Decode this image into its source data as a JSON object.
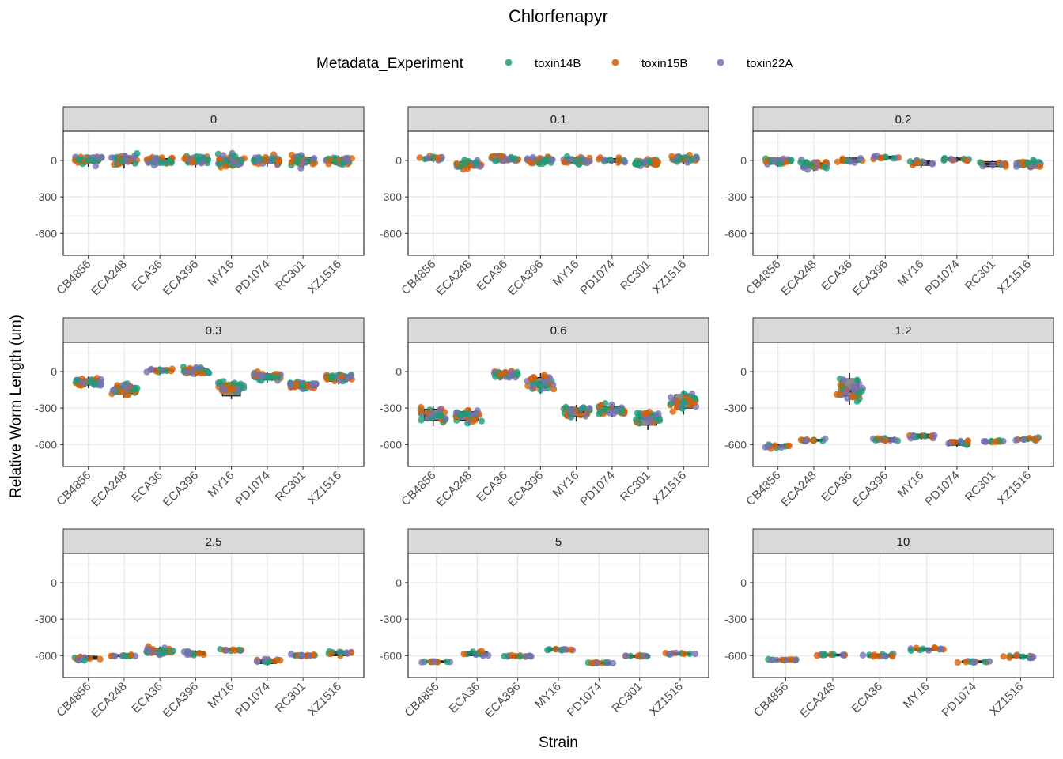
{
  "chart_data": {
    "type": "scatter",
    "title": "Chlorfenapyr",
    "xlabel": "Strain",
    "ylabel": "Relative Worm Length (um)",
    "ylim": [
      -780,
      240
    ],
    "y_ticks": [
      0,
      -300,
      -600
    ],
    "grid": true,
    "legend": {
      "title": "Metadata_Experiment",
      "position": "top",
      "entries": [
        {
          "name": "toxin14B",
          "color": "#1b9e77"
        },
        {
          "name": "toxin15B",
          "color": "#d95f02"
        },
        {
          "name": "toxin22A",
          "color": "#7570b3"
        }
      ]
    },
    "panels": [
      {
        "label": "0",
        "strains": [
          "CB4856",
          "ECA248",
          "ECA36",
          "ECA396",
          "MY16",
          "PD1074",
          "RC301",
          "XZ1516"
        ],
        "medians": [
          5,
          0,
          0,
          0,
          0,
          0,
          0,
          0
        ],
        "q1": [
          -20,
          -25,
          -15,
          -25,
          -20,
          -20,
          -25,
          -20
        ],
        "q3": [
          25,
          25,
          15,
          25,
          20,
          20,
          25,
          20
        ],
        "spread": [
          35,
          45,
          30,
          35,
          45,
          35,
          40,
          30
        ]
      },
      {
        "label": "0.1",
        "strains": [
          "CB4856",
          "ECA248",
          "ECA36",
          "ECA396",
          "MY16",
          "PD1074",
          "RC301",
          "XZ1516"
        ],
        "medians": [
          15,
          -30,
          15,
          0,
          0,
          0,
          -20,
          10
        ],
        "q1": [
          0,
          -45,
          0,
          -15,
          -20,
          -15,
          -35,
          -10
        ],
        "q3": [
          30,
          -10,
          30,
          15,
          20,
          15,
          -5,
          25
        ],
        "spread": [
          20,
          30,
          25,
          25,
          25,
          20,
          25,
          25
        ]
      },
      {
        "label": "0.2",
        "strains": [
          "CB4856",
          "ECA248",
          "ECA36",
          "ECA396",
          "MY16",
          "PD1074",
          "RC301",
          "XZ1516"
        ],
        "medians": [
          -10,
          -40,
          0,
          25,
          -20,
          10,
          -30,
          -30
        ],
        "q1": [
          -30,
          -60,
          -15,
          15,
          -40,
          0,
          -50,
          -50
        ],
        "q3": [
          10,
          -20,
          20,
          35,
          -5,
          20,
          -10,
          -10
        ],
        "spread": [
          25,
          30,
          20,
          15,
          20,
          15,
          20,
          25
        ]
      },
      {
        "label": "0.3",
        "strains": [
          "CB4856",
          "ECA248",
          "ECA36",
          "ECA396",
          "MY16",
          "PD1074",
          "RC301",
          "XZ1516"
        ],
        "medians": [
          -90,
          -150,
          10,
          10,
          -130,
          -40,
          -110,
          -50
        ],
        "q1": [
          -110,
          -180,
          -5,
          -20,
          -200,
          -70,
          -130,
          -80
        ],
        "q3": [
          -60,
          -120,
          30,
          30,
          -100,
          -20,
          -90,
          -30
        ],
        "spread": [
          30,
          40,
          20,
          25,
          30,
          25,
          25,
          30
        ]
      },
      {
        "label": "0.6",
        "strains": [
          "CB4856",
          "ECA248",
          "ECA36",
          "ECA396",
          "MY16",
          "PD1074",
          "RC301",
          "XZ1516"
        ],
        "medians": [
          -360,
          -370,
          -20,
          -90,
          -330,
          -310,
          -380,
          -250
        ],
        "q1": [
          -400,
          -400,
          -40,
          -130,
          -370,
          -340,
          -440,
          -300
        ],
        "q3": [
          -310,
          -330,
          -5,
          -50,
          -300,
          -290,
          -350,
          -190
        ],
        "spread": [
          55,
          50,
          30,
          60,
          45,
          40,
          45,
          60
        ]
      },
      {
        "label": "1.2",
        "strains": [
          "CB4856",
          "ECA248",
          "ECA36",
          "ECA396",
          "MY16",
          "PD1074",
          "RC301",
          "XZ1516"
        ],
        "medians": [
          -615,
          -565,
          -160,
          -560,
          -530,
          -585,
          -575,
          -555
        ],
        "q1": [
          -625,
          -570,
          -200,
          -575,
          -545,
          -605,
          -585,
          -565
        ],
        "q3": [
          -600,
          -560,
          -60,
          -545,
          -515,
          -570,
          -570,
          -545
        ],
        "spread": [
          12,
          10,
          80,
          18,
          15,
          18,
          10,
          12
        ]
      },
      {
        "label": "2.5",
        "strains": [
          "CB4856",
          "ECA248",
          "ECA36",
          "ECA396",
          "MY16",
          "PD1074",
          "RC301",
          "XZ1516"
        ],
        "medians": [
          -620,
          -600,
          -565,
          -580,
          -550,
          -650,
          -595,
          -580
        ],
        "q1": [
          -630,
          -605,
          -590,
          -595,
          -560,
          -665,
          -610,
          -600
        ],
        "q3": [
          -605,
          -595,
          -540,
          -565,
          -540,
          -635,
          -585,
          -570
        ],
        "spread": [
          15,
          6,
          25,
          15,
          10,
          20,
          12,
          18
        ]
      },
      {
        "label": "5",
        "strains": [
          "CB4856",
          "ECA36",
          "ECA396",
          "MY16",
          "PD1074",
          "RC301",
          "XZ1516"
        ],
        "medians": [
          -650,
          -580,
          -605,
          -550,
          -660,
          -605,
          -585
        ],
        "q1": [
          -655,
          -600,
          -615,
          -560,
          -665,
          -610,
          -590
        ],
        "q3": [
          -645,
          -570,
          -600,
          -540,
          -655,
          -600,
          -580
        ],
        "spread": [
          5,
          15,
          8,
          10,
          5,
          5,
          5
        ]
      },
      {
        "label": "10",
        "strains": [
          "CB4856",
          "ECA248",
          "ECA36",
          "MY16",
          "PD1074",
          "XZ1516"
        ],
        "medians": [
          -635,
          -595,
          -600,
          -550,
          -650,
          -605
        ],
        "q1": [
          -640,
          -600,
          -610,
          -560,
          -655,
          -615
        ],
        "q3": [
          -630,
          -590,
          -590,
          -540,
          -645,
          -595
        ],
        "spread": [
          5,
          5,
          15,
          15,
          5,
          15
        ]
      }
    ]
  }
}
